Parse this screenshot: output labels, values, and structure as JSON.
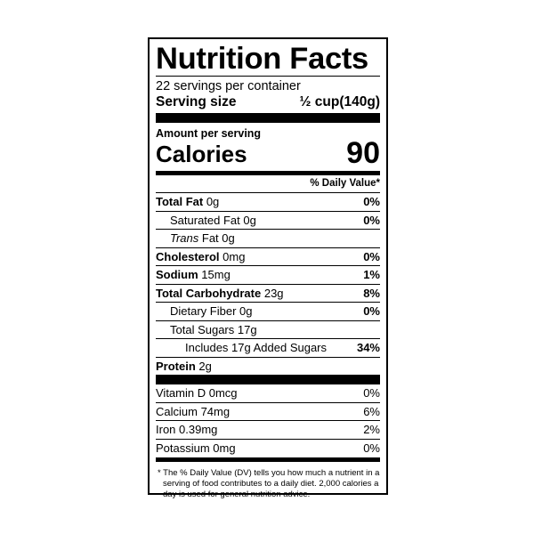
{
  "title": "Nutrition Facts",
  "servings_per_container": "22 servings per container",
  "serving_size": {
    "label": "Serving size",
    "value": "½ cup(140g)"
  },
  "amount_per_serving": "Amount per serving",
  "calories": {
    "label": "Calories",
    "value": "90"
  },
  "daily_value_header": "% Daily Value*",
  "nutrients": [
    {
      "name": "Total Fat",
      "amount": "0g",
      "dv": "0%"
    },
    {
      "name": "Saturated Fat",
      "amount": "0g",
      "dv": "0%"
    },
    {
      "name": "Trans",
      "suffix": "Fat 0g",
      "dv": ""
    },
    {
      "name": "Cholesterol",
      "amount": "0mg",
      "dv": "0%"
    },
    {
      "name": "Sodium",
      "amount": "15mg",
      "dv": "1%"
    },
    {
      "name": "Total Carbohydrate",
      "amount": "23g",
      "dv": "8%"
    },
    {
      "name": "Dietary Fiber",
      "amount": "0g",
      "dv": "0%"
    },
    {
      "name": "Total Sugars",
      "amount": "17g",
      "dv": ""
    },
    {
      "name": "Includes 17g Added Sugars",
      "amount": "",
      "dv": "34%"
    },
    {
      "name": "Protein",
      "amount": "2g",
      "dv": ""
    }
  ],
  "vitamins": [
    {
      "name": "Vitamin D 0mcg",
      "dv": "0%"
    },
    {
      "name": "Calcium 74mg",
      "dv": "6%"
    },
    {
      "name": "Iron 0.39mg",
      "dv": "2%"
    },
    {
      "name": "Potassium 0mg",
      "dv": "0%"
    }
  ],
  "footnote": "* The % Daily Value (DV) tells you how much a nutrient in a serving of food contributes to a daily diet. 2,000 calories a day is used for general nutrition advice."
}
